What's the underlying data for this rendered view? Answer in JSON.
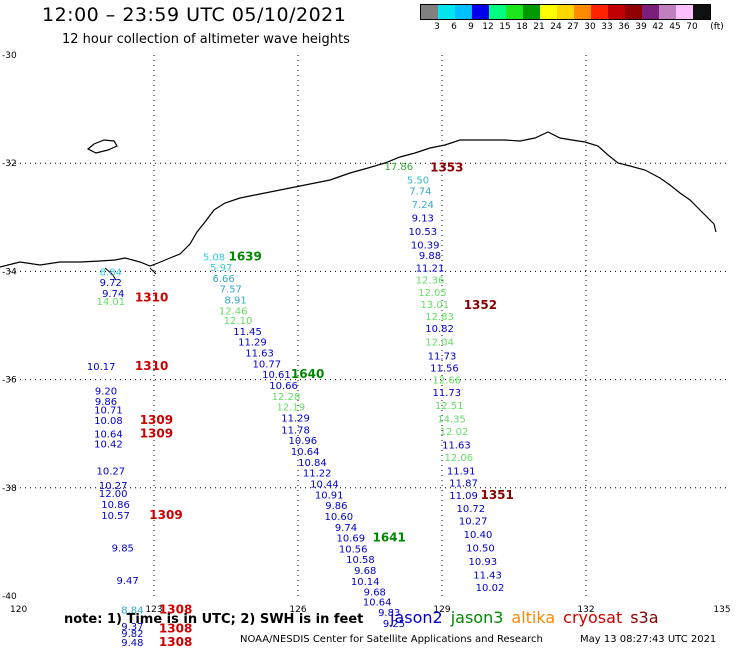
{
  "title": "12:00 – 23:59 UTC 05/10/2021",
  "subtitle": "12 hour collection of altimeter wave heights",
  "legend": {
    "unit": "(ft)",
    "colors": [
      "#808080",
      "#00e5ee",
      "#00bfff",
      "#0000ee",
      "#00ff7f",
      "#1ee61e",
      "#009a00",
      "#ffff00",
      "#ffd700",
      "#ff8c00",
      "#ff2400",
      "#c00000",
      "#900000",
      "#7a1f7a",
      "#c080c0",
      "#ffc0ff",
      "#101010"
    ],
    "ticks": [
      "3",
      "6",
      "9",
      "12",
      "15",
      "18",
      "21",
      "24",
      "27",
      "30",
      "33",
      "36",
      "39",
      "42",
      "45",
      "70"
    ]
  },
  "axes": {
    "lat_labels": [
      "-30",
      "-32",
      "-34",
      "-36",
      "-38",
      "-40"
    ],
    "lon_labels": [
      "120",
      "123",
      "126",
      "129",
      "132",
      "135"
    ]
  },
  "tracks": {
    "colors": {
      "jason2": "#0000cc",
      "jason3": "#008800",
      "altika": "#ff8800",
      "cryosat": "#cc0000",
      "s3a": "#880000"
    },
    "points": [
      {
        "t": "17.86",
        "lon": 128.1,
        "lat": -32.05,
        "c": "#33aa33"
      },
      {
        "t": "1353",
        "lon": 129.1,
        "lat": -32.08,
        "c": "#880000",
        "bold": true
      },
      {
        "t": "5.50",
        "lon": 128.5,
        "lat": -32.3,
        "c": "#33bbcc"
      },
      {
        "t": "7.74",
        "lon": 128.55,
        "lat": -32.5,
        "c": "#33aacc"
      },
      {
        "t": "7.24",
        "lon": 128.6,
        "lat": -32.75,
        "c": "#33aacc"
      },
      {
        "t": "9.13",
        "lon": 128.6,
        "lat": -33.0,
        "c": "#0000cc"
      },
      {
        "t": "10.53",
        "lon": 128.6,
        "lat": -33.25,
        "c": "#0000cc"
      },
      {
        "t": "10.39",
        "lon": 128.65,
        "lat": -33.5,
        "c": "#0000cc"
      },
      {
        "t": "9.88",
        "lon": 128.75,
        "lat": -33.7,
        "c": "#0000cc"
      },
      {
        "t": "11.21",
        "lon": 128.75,
        "lat": -33.93,
        "c": "#0000cc"
      },
      {
        "t": "12.36",
        "lon": 128.75,
        "lat": -34.15,
        "c": "#66dd66"
      },
      {
        "t": "12.05",
        "lon": 128.8,
        "lat": -34.38,
        "c": "#66dd66"
      },
      {
        "t": "13.01",
        "lon": 128.85,
        "lat": -34.6,
        "c": "#66dd66"
      },
      {
        "t": "1352",
        "lon": 129.8,
        "lat": -34.62,
        "c": "#880000",
        "bold": true
      },
      {
        "t": "12.83",
        "lon": 128.95,
        "lat": -34.82,
        "c": "#66dd66"
      },
      {
        "t": "10.82",
        "lon": 128.95,
        "lat": -35.05,
        "c": "#0000cc"
      },
      {
        "t": "12.04",
        "lon": 128.95,
        "lat": -35.3,
        "c": "#66dd66"
      },
      {
        "t": "11.73",
        "lon": 129.0,
        "lat": -35.55,
        "c": "#0000cc"
      },
      {
        "t": "11.56",
        "lon": 129.05,
        "lat": -35.78,
        "c": "#0000cc"
      },
      {
        "t": "12.66",
        "lon": 129.1,
        "lat": -36.0,
        "c": "#66dd66"
      },
      {
        "t": "11.73",
        "lon": 129.1,
        "lat": -36.23,
        "c": "#0000cc"
      },
      {
        "t": "12.51",
        "lon": 129.15,
        "lat": -36.47,
        "c": "#66dd66"
      },
      {
        "t": "14.35",
        "lon": 129.2,
        "lat": -36.72,
        "c": "#66dd66"
      },
      {
        "t": "12.02",
        "lon": 129.25,
        "lat": -36.95,
        "c": "#66dd66"
      },
      {
        "t": "11.63",
        "lon": 129.3,
        "lat": -37.2,
        "c": "#0000cc"
      },
      {
        "t": "12.06",
        "lon": 129.35,
        "lat": -37.43,
        "c": "#66dd66"
      },
      {
        "t": "11.91",
        "lon": 129.4,
        "lat": -37.68,
        "c": "#0000cc"
      },
      {
        "t": "11.87",
        "lon": 129.45,
        "lat": -37.9,
        "c": "#0000cc"
      },
      {
        "t": "11.09",
        "lon": 129.45,
        "lat": -38.13,
        "c": "#0000cc"
      },
      {
        "t": "1351",
        "lon": 130.15,
        "lat": -38.13,
        "c": "#880000",
        "bold": true
      },
      {
        "t": "10.72",
        "lon": 129.6,
        "lat": -38.37,
        "c": "#0000cc"
      },
      {
        "t": "10.27",
        "lon": 129.65,
        "lat": -38.6,
        "c": "#0000cc"
      },
      {
        "t": "10.40",
        "lon": 129.75,
        "lat": -38.85,
        "c": "#0000cc"
      },
      {
        "t": "10.50",
        "lon": 129.8,
        "lat": -39.1,
        "c": "#0000cc"
      },
      {
        "t": "10.93",
        "lon": 129.85,
        "lat": -39.35,
        "c": "#0000cc"
      },
      {
        "t": "11.43",
        "lon": 129.95,
        "lat": -39.6,
        "c": "#0000cc"
      },
      {
        "t": "10.02",
        "lon": 130.0,
        "lat": -39.83,
        "c": "#0000cc"
      },
      {
        "t": "5.08",
        "lon": 124.25,
        "lat": -33.72,
        "c": "#33ccdd"
      },
      {
        "t": "1639",
        "lon": 124.9,
        "lat": -33.72,
        "c": "#008800",
        "bold": true
      },
      {
        "t": "5.97",
        "lon": 124.4,
        "lat": -33.92,
        "c": "#33ccdd"
      },
      {
        "t": "6.66",
        "lon": 124.45,
        "lat": -34.12,
        "c": "#33aacc"
      },
      {
        "t": "7.57",
        "lon": 124.6,
        "lat": -34.32,
        "c": "#33aacc"
      },
      {
        "t": "8.91",
        "lon": 124.7,
        "lat": -34.52,
        "c": "#33aacc"
      },
      {
        "t": "12.46",
        "lon": 124.65,
        "lat": -34.72,
        "c": "#66dd66"
      },
      {
        "t": "12.10",
        "lon": 124.75,
        "lat": -34.9,
        "c": "#66dd66"
      },
      {
        "t": "11.45",
        "lon": 124.95,
        "lat": -35.1,
        "c": "#0000cc"
      },
      {
        "t": "11.29",
        "lon": 125.05,
        "lat": -35.3,
        "c": "#0000cc"
      },
      {
        "t": "11.63",
        "lon": 125.2,
        "lat": -35.5,
        "c": "#0000cc"
      },
      {
        "t": "10.77",
        "lon": 125.35,
        "lat": -35.7,
        "c": "#0000cc"
      },
      {
        "t": "10.61",
        "lon": 125.55,
        "lat": -35.9,
        "c": "#0000cc"
      },
      {
        "t": "1640",
        "lon": 126.2,
        "lat": -35.9,
        "c": "#008800",
        "bold": true
      },
      {
        "t": "10.66",
        "lon": 125.7,
        "lat": -36.1,
        "c": "#0000cc"
      },
      {
        "t": "12.28",
        "lon": 125.75,
        "lat": -36.3,
        "c": "#66dd66"
      },
      {
        "t": "12.19",
        "lon": 125.85,
        "lat": -36.5,
        "c": "#66dd66"
      },
      {
        "t": "11.29",
        "lon": 125.95,
        "lat": -36.7,
        "c": "#0000cc"
      },
      {
        "t": "11.78",
        "lon": 125.95,
        "lat": -36.92,
        "c": "#0000cc"
      },
      {
        "t": "10.96",
        "lon": 126.1,
        "lat": -37.12,
        "c": "#0000cc"
      },
      {
        "t": "10.64",
        "lon": 126.15,
        "lat": -37.32,
        "c": "#0000cc"
      },
      {
        "t": "10.84",
        "lon": 126.3,
        "lat": -37.52,
        "c": "#0000cc"
      },
      {
        "t": "11.22",
        "lon": 126.4,
        "lat": -37.72,
        "c": "#0000cc"
      },
      {
        "t": "10.44",
        "lon": 126.55,
        "lat": -37.92,
        "c": "#0000cc"
      },
      {
        "t": "10.91",
        "lon": 126.65,
        "lat": -38.12,
        "c": "#0000cc"
      },
      {
        "t": "9.86",
        "lon": 126.8,
        "lat": -38.32,
        "c": "#0000cc"
      },
      {
        "t": "10.60",
        "lon": 126.85,
        "lat": -38.52,
        "c": "#0000cc"
      },
      {
        "t": "9.74",
        "lon": 127.0,
        "lat": -38.72,
        "c": "#0000cc"
      },
      {
        "t": "10.69",
        "lon": 127.1,
        "lat": -38.92,
        "c": "#0000cc"
      },
      {
        "t": "1641",
        "lon": 127.9,
        "lat": -38.92,
        "c": "#008800",
        "bold": true
      },
      {
        "t": "10.56",
        "lon": 127.15,
        "lat": -39.12,
        "c": "#0000cc"
      },
      {
        "t": "10.58",
        "lon": 127.3,
        "lat": -39.32,
        "c": "#0000cc"
      },
      {
        "t": "9.68",
        "lon": 127.4,
        "lat": -39.52,
        "c": "#0000cc"
      },
      {
        "t": "10.14",
        "lon": 127.4,
        "lat": -39.72,
        "c": "#0000cc"
      },
      {
        "t": "9.68",
        "lon": 127.6,
        "lat": -39.92,
        "c": "#0000cc"
      },
      {
        "t": "10.64",
        "lon": 127.65,
        "lat": -40.1,
        "c": "#0000cc"
      },
      {
        "t": "9.83",
        "lon": 127.9,
        "lat": -40.3,
        "c": "#0000cc"
      },
      {
        "t": "9.25",
        "lon": 128.0,
        "lat": -40.5,
        "c": "#0000cc"
      },
      {
        "t": "8.84",
        "lon": 122.1,
        "lat": -34.0,
        "c": "#33ccdd"
      },
      {
        "t": "9.72",
        "lon": 122.1,
        "lat": -34.2,
        "c": "#0000cc"
      },
      {
        "t": "9.74",
        "lon": 122.15,
        "lat": -34.4,
        "c": "#0000cc"
      },
      {
        "t": "14.01",
        "lon": 122.1,
        "lat": -34.55,
        "c": "#66dd66"
      },
      {
        "t": "1310",
        "lon": 122.95,
        "lat": -34.48,
        "c": "#cc0000",
        "bold": true
      },
      {
        "t": "10.17",
        "lon": 121.9,
        "lat": -35.75,
        "c": "#0000cc"
      },
      {
        "t": "1310",
        "lon": 122.95,
        "lat": -35.75,
        "c": "#cc0000",
        "bold": true
      },
      {
        "t": "9.20",
        "lon": 122.0,
        "lat": -36.2,
        "c": "#0000cc"
      },
      {
        "t": "9.86",
        "lon": 122.0,
        "lat": -36.4,
        "c": "#0000cc"
      },
      {
        "t": "10.71",
        "lon": 122.05,
        "lat": -36.55,
        "c": "#0000cc"
      },
      {
        "t": "10.08",
        "lon": 122.05,
        "lat": -36.75,
        "c": "#0000cc"
      },
      {
        "t": "1309",
        "lon": 123.05,
        "lat": -36.75,
        "c": "#cc0000",
        "bold": true
      },
      {
        "t": "10.64",
        "lon": 122.05,
        "lat": -37.0,
        "c": "#0000cc"
      },
      {
        "t": "1309",
        "lon": 123.05,
        "lat": -37.0,
        "c": "#cc0000",
        "bold": true
      },
      {
        "t": "10.42",
        "lon": 122.05,
        "lat": -37.18,
        "c": "#0000cc"
      },
      {
        "t": "10.27",
        "lon": 122.1,
        "lat": -37.68,
        "c": "#0000cc"
      },
      {
        "t": "10.27",
        "lon": 122.15,
        "lat": -37.95,
        "c": "#0000cc"
      },
      {
        "t": "12.00",
        "lon": 122.15,
        "lat": -38.1,
        "c": "#0000cc"
      },
      {
        "t": "10.86",
        "lon": 122.2,
        "lat": -38.3,
        "c": "#0000cc"
      },
      {
        "t": "10.57",
        "lon": 122.2,
        "lat": -38.5,
        "c": "#0000cc"
      },
      {
        "t": "1309",
        "lon": 123.25,
        "lat": -38.5,
        "c": "#cc0000",
        "bold": true
      },
      {
        "t": "9.85",
        "lon": 122.35,
        "lat": -39.1,
        "c": "#0000cc"
      },
      {
        "t": "9.47",
        "lon": 122.45,
        "lat": -39.7,
        "c": "#0000cc"
      },
      {
        "t": "8.84",
        "lon": 122.55,
        "lat": -40.25,
        "c": "#33aacc"
      },
      {
        "t": "1308",
        "lon": 123.45,
        "lat": -40.25,
        "c": "#cc0000",
        "bold": true
      },
      {
        "t": "9.37",
        "lon": 122.55,
        "lat": -40.55,
        "c": "#0000cc"
      },
      {
        "t": "1308",
        "lon": 123.45,
        "lat": -40.6,
        "c": "#cc0000",
        "bold": true
      },
      {
        "t": "9.82",
        "lon": 122.55,
        "lat": -40.68,
        "c": "#0000cc"
      },
      {
        "t": "1308",
        "lon": 123.45,
        "lat": -40.85,
        "c": "#cc0000",
        "bold": true
      },
      {
        "t": "9.48",
        "lon": 122.55,
        "lat": -40.85,
        "c": "#0000cc"
      }
    ]
  },
  "footer": {
    "note": "note:  1) Time is in UTC; 2) SWH is in feet",
    "satellites": [
      {
        "name": "jason2",
        "color": "#0000cc"
      },
      {
        "name": "jason3",
        "color": "#008800"
      },
      {
        "name": "altika",
        "color": "#ff8800"
      },
      {
        "name": "cryosat",
        "color": "#cc0000"
      },
      {
        "name": "s3a",
        "color": "#880000"
      }
    ],
    "credit": "NOAA/NESDIS Center for Satellite Applications and Research",
    "stamp": "May 13 08:27:43 UTC 2021"
  }
}
